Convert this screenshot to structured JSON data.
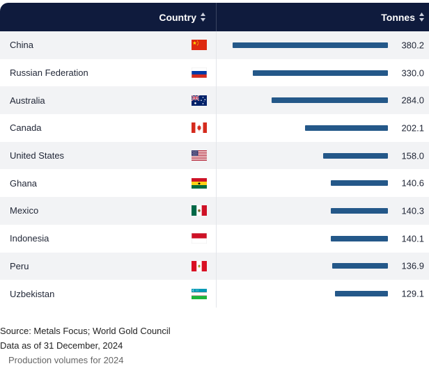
{
  "header": {
    "country_label": "Country",
    "tonnes_label": "Tonnes"
  },
  "chart_data": {
    "type": "bar",
    "orientation": "horizontal",
    "categories": [
      "China",
      "Russian Federation",
      "Australia",
      "Canada",
      "United States",
      "Ghana",
      "Mexico",
      "Indonesia",
      "Peru",
      "Uzbekistan"
    ],
    "values": [
      380.2,
      330.0,
      284.0,
      202.1,
      158.0,
      140.6,
      140.3,
      140.1,
      136.9,
      129.1
    ],
    "value_labels": [
      "380.2",
      "330.0",
      "284.0",
      "202.1",
      "158.0",
      "140.6",
      "140.3",
      "140.1",
      "136.9",
      "129.1"
    ],
    "flags": [
      "cn-flag-icon",
      "ru-flag-icon",
      "au-flag-icon",
      "ca-flag-icon",
      "us-flag-icon",
      "gh-flag-icon",
      "mx-flag-icon",
      "id-flag-icon",
      "pe-flag-icon",
      "uz-flag-icon"
    ],
    "bar_color": "#245889",
    "xlim": [
      0,
      380.2
    ]
  },
  "footer": {
    "source": "Source: Metals Focus; World Gold Council",
    "data_date": "Data as of 31 December, 2024",
    "note": "Production volumes for 2024"
  }
}
